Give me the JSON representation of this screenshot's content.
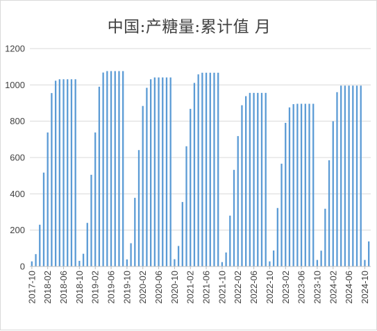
{
  "chart_data": {
    "type": "bar",
    "title": "中国:产糖量:累计值 月",
    "xlabel": "",
    "ylabel": "",
    "ylim": [
      0,
      1200
    ],
    "yticks": [
      0,
      200,
      400,
      600,
      800,
      1000,
      1200
    ],
    "grid": true,
    "legend": "none",
    "bar_color": "#5b9bd5",
    "x_tick_labels": [
      "2017-10",
      "2018-02",
      "2018-06",
      "2018-10",
      "2019-02",
      "2019-06",
      "2019-10",
      "2020-02",
      "2020-06",
      "2020-10",
      "2021-02",
      "2021-06",
      "2021-10",
      "2022-02",
      "2022-06",
      "2022-10",
      "2023-02",
      "2023-06",
      "2023-10",
      "2024-02",
      "2024-06",
      "2024-10"
    ],
    "categories": [
      "2017-10",
      "2017-11",
      "2017-12",
      "2018-01",
      "2018-02",
      "2018-03",
      "2018-04",
      "2018-05",
      "2018-06",
      "2018-07",
      "2018-08",
      "2018-09",
      "2018-10",
      "2018-11",
      "2018-12",
      "2019-01",
      "2019-02",
      "2019-03",
      "2019-04",
      "2019-05",
      "2019-06",
      "2019-07",
      "2019-08",
      "2019-09",
      "2019-10",
      "2019-11",
      "2019-12",
      "2020-01",
      "2020-02",
      "2020-03",
      "2020-04",
      "2020-05",
      "2020-06",
      "2020-07",
      "2020-08",
      "2020-09",
      "2020-10",
      "2020-11",
      "2020-12",
      "2021-01",
      "2021-02",
      "2021-03",
      "2021-04",
      "2021-05",
      "2021-06",
      "2021-07",
      "2021-08",
      "2021-09",
      "2021-10",
      "2021-11",
      "2021-12",
      "2022-01",
      "2022-02",
      "2022-03",
      "2022-04",
      "2022-05",
      "2022-06",
      "2022-07",
      "2022-08",
      "2022-09",
      "2022-10",
      "2022-11",
      "2022-12",
      "2023-01",
      "2023-02",
      "2023-03",
      "2023-04",
      "2023-05",
      "2023-06",
      "2023-07",
      "2023-08",
      "2023-09",
      "2023-10",
      "2023-11",
      "2023-12",
      "2024-01",
      "2024-02",
      "2024-03",
      "2024-04",
      "2024-05",
      "2024-06",
      "2024-07",
      "2024-08",
      "2024-09",
      "2024-10",
      "2024-11"
    ],
    "values": [
      28,
      68,
      230,
      517,
      738,
      955,
      1023,
      1031,
      1031,
      1031,
      1031,
      1031,
      31,
      70,
      240,
      505,
      738,
      990,
      1068,
      1076,
      1076,
      1076,
      1076,
      1076,
      39,
      128,
      378,
      641,
      884,
      984,
      1031,
      1041,
      1041,
      1041,
      1041,
      1041,
      40,
      113,
      355,
      662,
      868,
      1011,
      1058,
      1067,
      1067,
      1067,
      1067,
      1067,
      24,
      77,
      280,
      532,
      718,
      888,
      938,
      956,
      956,
      956,
      956,
      956,
      28,
      88,
      322,
      566,
      791,
      876,
      894,
      896,
      896,
      896,
      896,
      896,
      36,
      87,
      318,
      585,
      800,
      960,
      996,
      996,
      996,
      996,
      996,
      996,
      36,
      138
    ]
  }
}
